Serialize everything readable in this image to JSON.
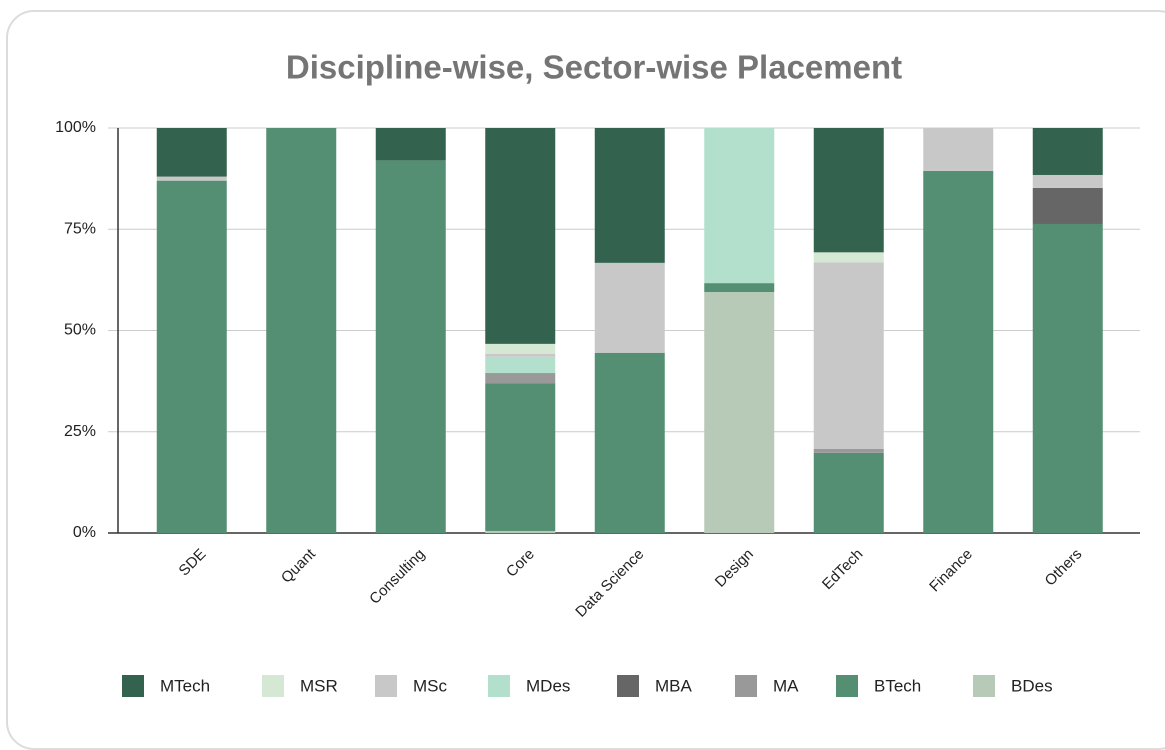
{
  "chart_data": {
    "type": "stacked-bar",
    "title": "Discipline-wise, Sector-wise Placement",
    "categories": [
      "SDE",
      "Quant",
      "Consulting",
      "Core",
      "Data Science",
      "Design",
      "EdTech",
      "Finance",
      "Others"
    ],
    "series": [
      {
        "name": "MTech",
        "color": "#33634e",
        "values": [
          12,
          0,
          8,
          53.3,
          33.3,
          0,
          30.7,
          0,
          11.6
        ]
      },
      {
        "name": "MSR",
        "color": "#d5e8d4",
        "values": [
          0,
          0,
          0,
          2.5,
          0,
          0,
          2.5,
          0,
          0
        ]
      },
      {
        "name": "MSc",
        "color": "#c8c8c8",
        "values": [
          1,
          0,
          0,
          0.7,
          22.2,
          0,
          46,
          10.6,
          3.2
        ]
      },
      {
        "name": "MDes",
        "color": "#b3e0cc",
        "values": [
          0,
          0,
          0,
          4,
          0,
          38.3,
          0,
          0,
          0
        ]
      },
      {
        "name": "MBA",
        "color": "#666666",
        "values": [
          0,
          0,
          0,
          0,
          0,
          0,
          0,
          0,
          8.9
        ]
      },
      {
        "name": "MA",
        "color": "#999999",
        "values": [
          0,
          0,
          0,
          2.5,
          0,
          0,
          1,
          0,
          0
        ]
      },
      {
        "name": "BTech",
        "color": "#548f74",
        "values": [
          87,
          100,
          92,
          36.5,
          44.5,
          2.2,
          19.8,
          89.4,
          76.3
        ]
      },
      {
        "name": "BDes",
        "color": "#b7c9b7",
        "values": [
          0,
          0,
          0,
          0.5,
          0,
          59.5,
          0,
          0,
          0
        ]
      }
    ],
    "ylim": [
      0,
      100
    ],
    "yticks": [
      {
        "value": 0,
        "label": "0%"
      },
      {
        "value": 25,
        "label": "25%"
      },
      {
        "value": 50,
        "label": "50%"
      },
      {
        "value": 75,
        "label": "75%"
      },
      {
        "value": 100,
        "label": "100%"
      }
    ],
    "grid": true,
    "legend": "bottom"
  }
}
